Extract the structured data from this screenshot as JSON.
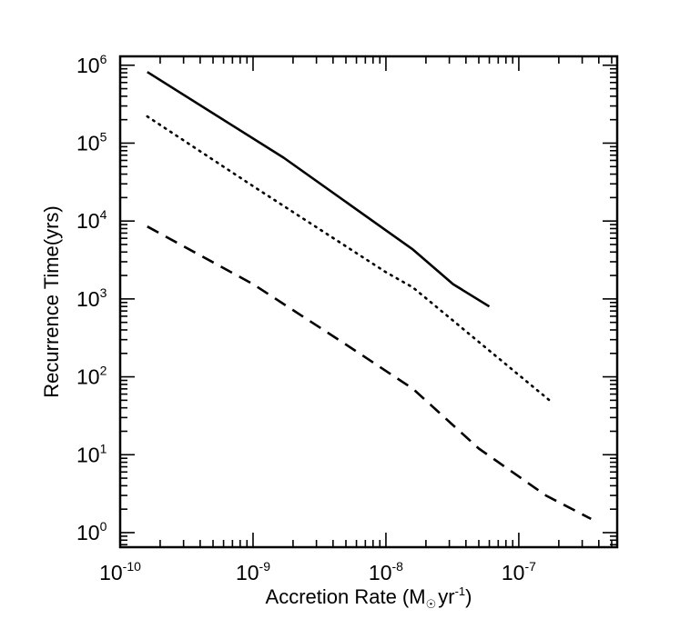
{
  "chart_data": {
    "type": "line",
    "title": "",
    "xlabel": "Accretion Rate (M☉yr⁻¹)",
    "xlabel_parts": {
      "main": "Accretion Rate (M",
      "sub": "☉",
      "unit": "yr",
      "sup": "-1",
      "close": ")"
    },
    "ylabel": "Recurrence Time(yrs)",
    "xscale": "log",
    "yscale": "log",
    "xlim": [
      1e-10,
      5.5e-07
    ],
    "ylim": [
      0.65,
      1300000.0
    ],
    "grid": false,
    "legend": "none",
    "x_ticks": [
      {
        "value": 1e-10,
        "base": "10",
        "exp": "-10"
      },
      {
        "value": 1e-09,
        "base": "10",
        "exp": "-9"
      },
      {
        "value": 1e-08,
        "base": "10",
        "exp": "-8"
      },
      {
        "value": 1e-07,
        "base": "10",
        "exp": "-7"
      }
    ],
    "y_ticks": [
      {
        "value": 1,
        "base": "10",
        "exp": "0"
      },
      {
        "value": 10,
        "base": "10",
        "exp": "1"
      },
      {
        "value": 100,
        "base": "10",
        "exp": "2"
      },
      {
        "value": 1000,
        "base": "10",
        "exp": "3"
      },
      {
        "value": 10000,
        "base": "10",
        "exp": "4"
      },
      {
        "value": 100000,
        "base": "10",
        "exp": "5"
      },
      {
        "value": 1000000,
        "base": "10",
        "exp": "6"
      }
    ],
    "series": [
      {
        "name": "solid",
        "style": "solid",
        "color": "#000000",
        "x": [
          1.6e-10,
          1.7e-09,
          1.6e-08,
          3.2e-08,
          6e-08
        ],
        "y": [
          820000,
          65000,
          4300,
          1550,
          800
        ]
      },
      {
        "name": "dotted",
        "style": "dotted",
        "color": "#000000",
        "x": [
          1.6e-10,
          1e-09,
          1e-08,
          1.6e-08,
          5e-08,
          1.7e-07
        ],
        "y": [
          220000,
          28000,
          2200,
          1400,
          280,
          50
        ]
      },
      {
        "name": "dashed",
        "style": "dashed",
        "color": "#000000",
        "x": [
          1.6e-10,
          1e-09,
          5e-09,
          1.6e-08,
          5e-08,
          1.6e-07,
          3.5e-07
        ],
        "y": [
          8500,
          1550,
          260,
          70,
          12,
          3,
          1.5
        ]
      }
    ]
  }
}
